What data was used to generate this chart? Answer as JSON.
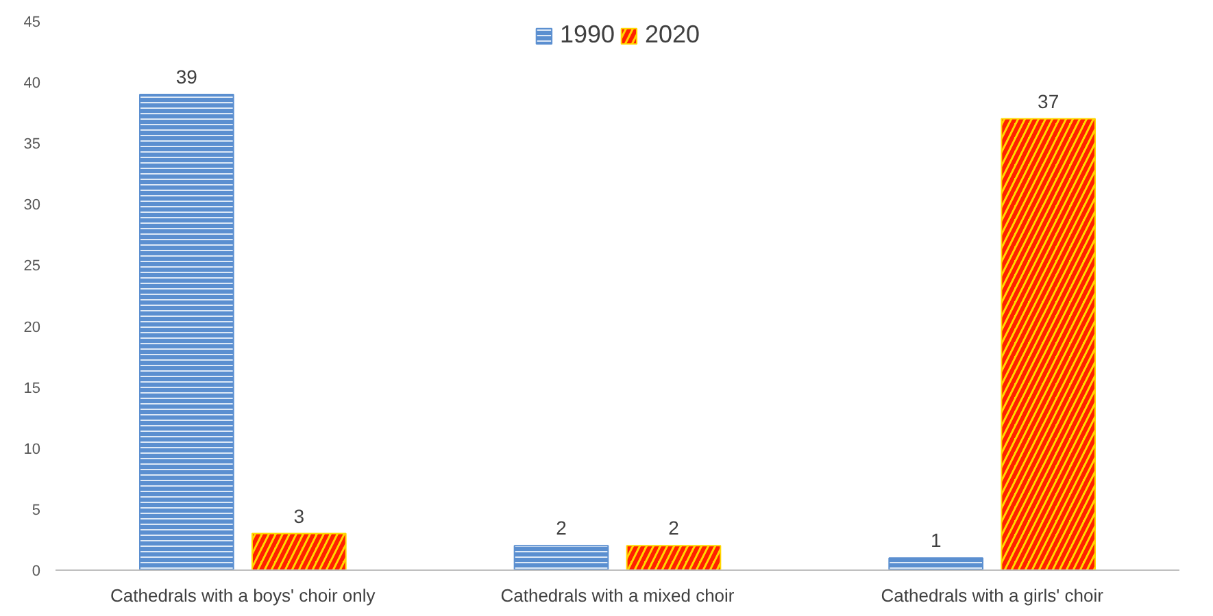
{
  "chart_data": {
    "type": "bar",
    "categories": [
      "Cathedrals with a boys' choir only",
      "Cathedrals with a mixed choir",
      "Cathedrals with a girls' choir"
    ],
    "series": [
      {
        "name": "1990",
        "color": "#5b8fd0",
        "values": [
          39,
          2,
          1
        ]
      },
      {
        "name": "2020",
        "color": "#ffd800",
        "values": [
          3,
          2,
          37
        ]
      }
    ],
    "ylim": [
      0,
      45
    ],
    "yticks": [
      0,
      5,
      10,
      15,
      20,
      25,
      30,
      35,
      40,
      45
    ],
    "grid": false,
    "legend": "top",
    "data_labels": true
  }
}
